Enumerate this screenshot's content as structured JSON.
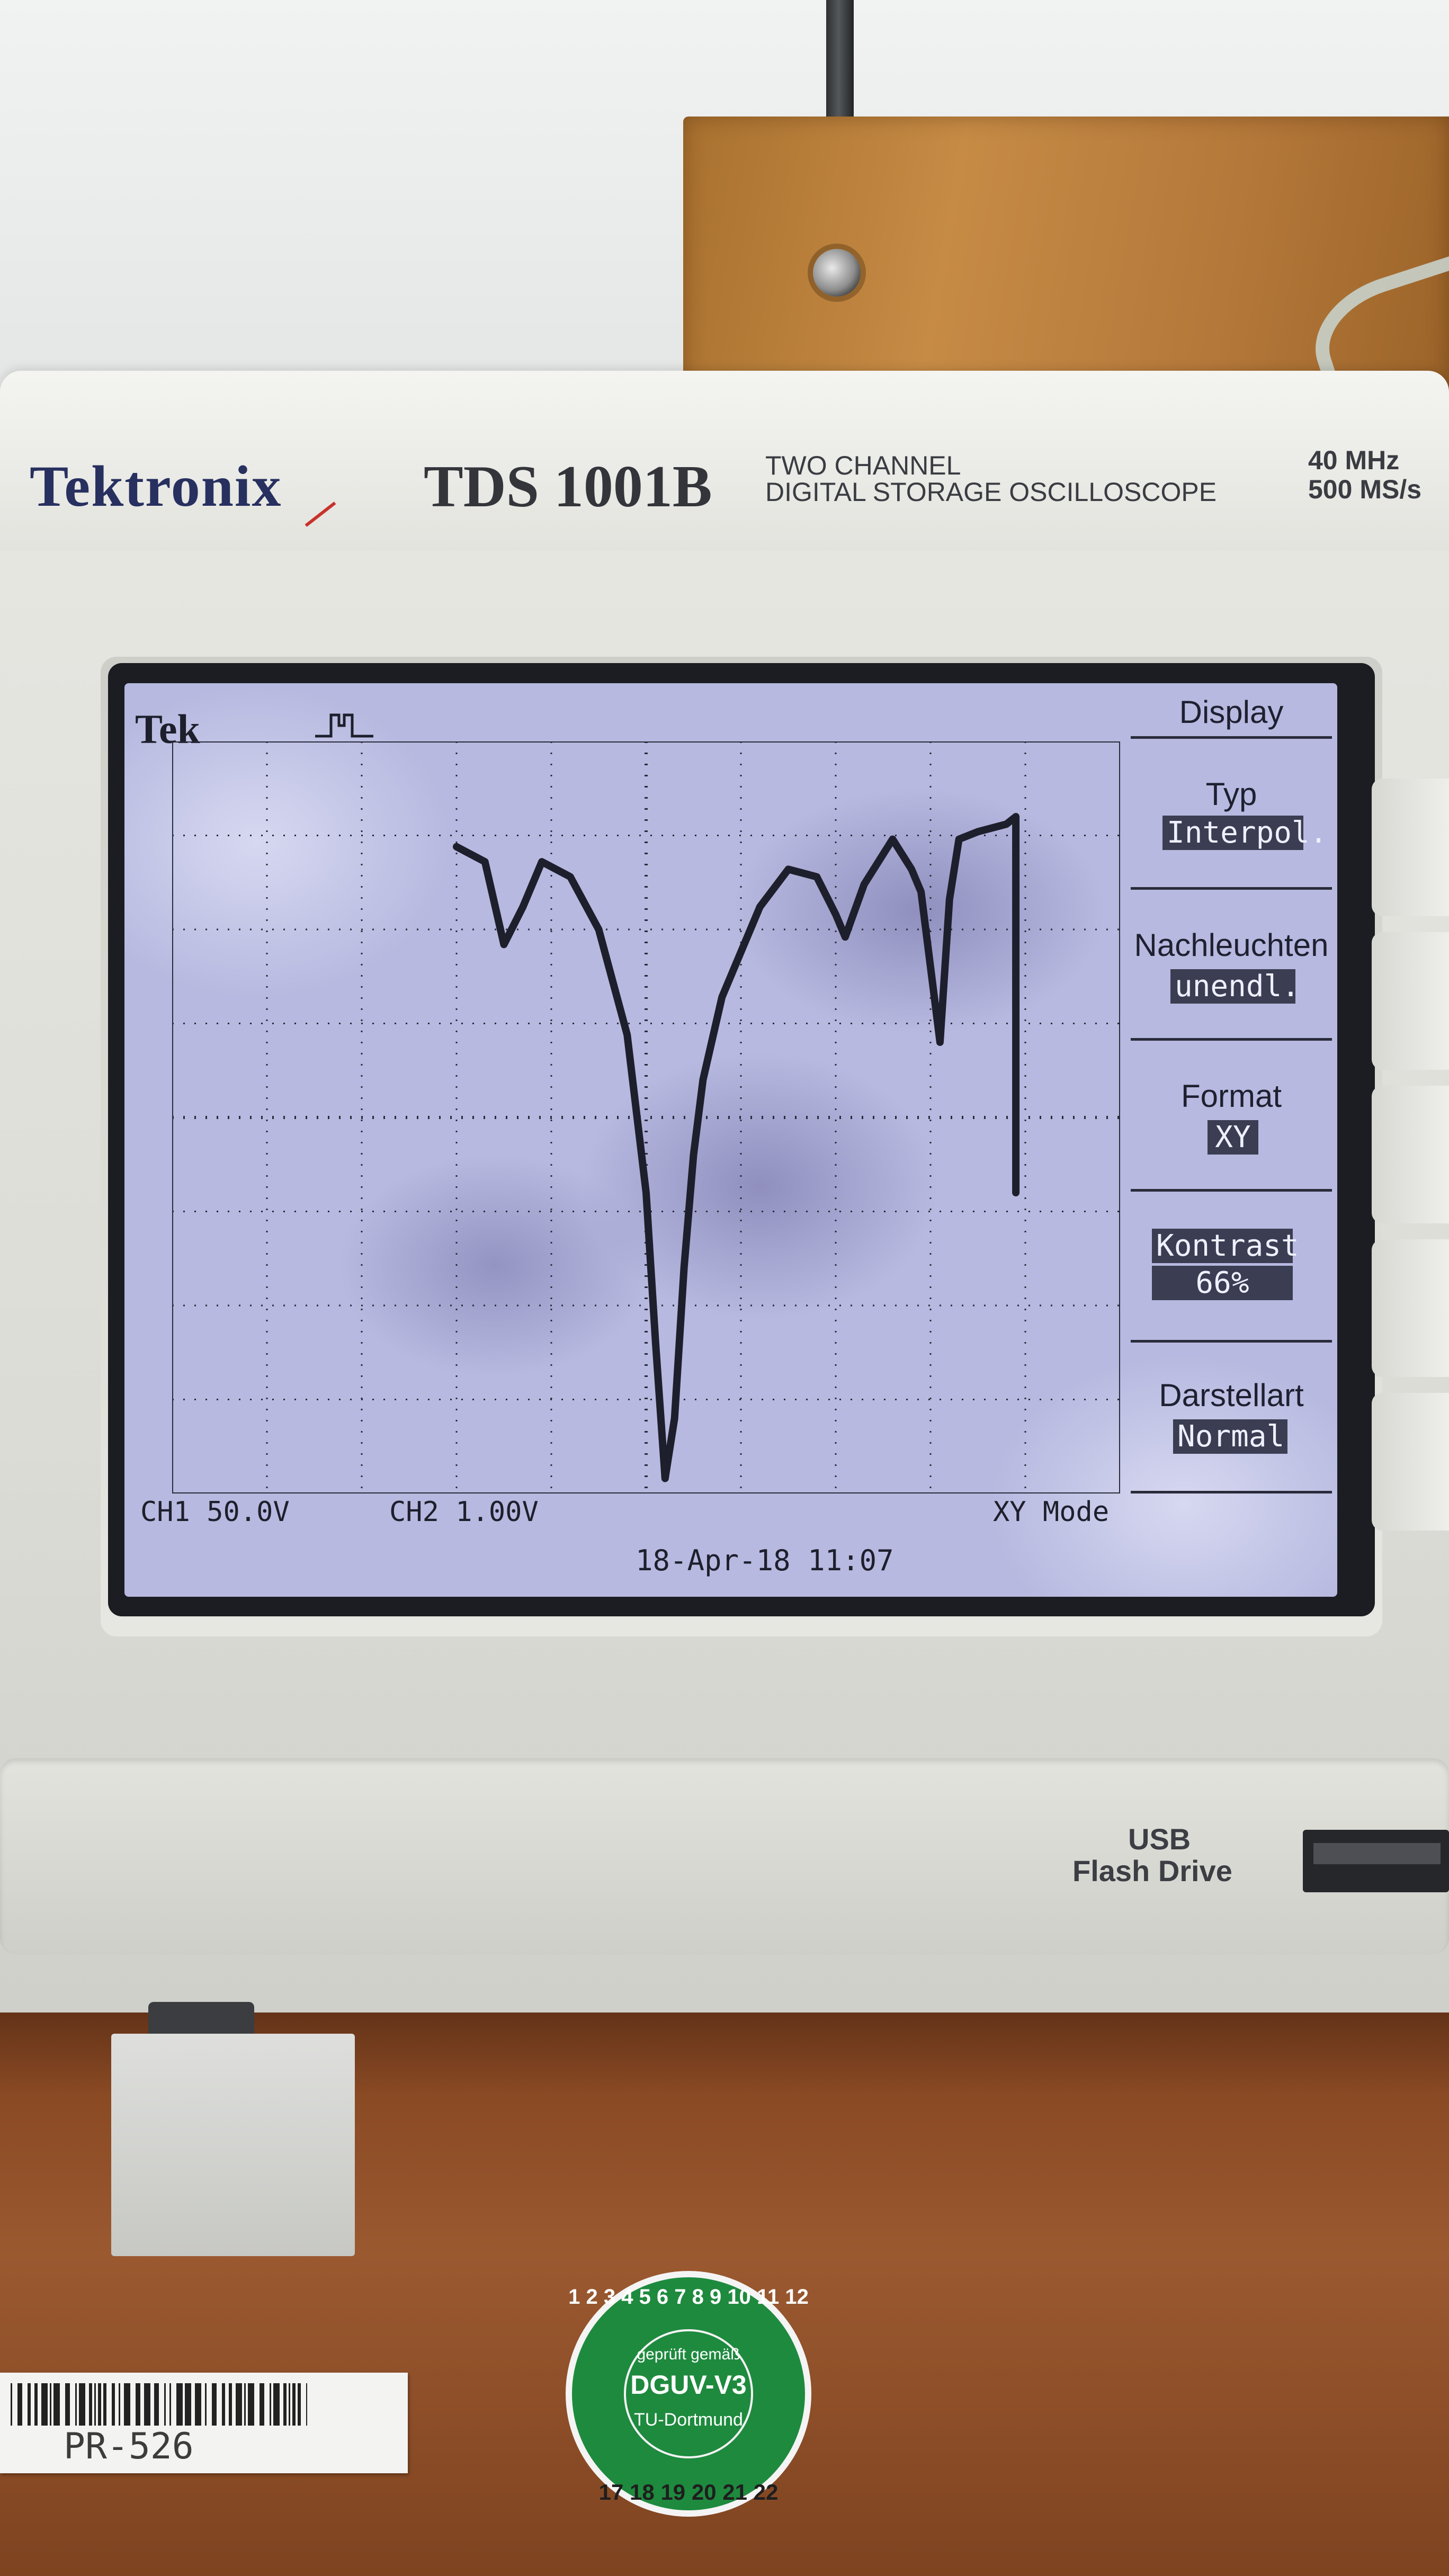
{
  "device": {
    "brand": "Tektronix",
    "model": "TDS 1001B",
    "description_line1": "TWO CHANNEL",
    "description_line2": "DIGITAL STORAGE OSCILLOSCOPE",
    "spec_bandwidth": "40 MHz",
    "spec_sample_rate": "500 MS/s"
  },
  "screen": {
    "logo": "Tek",
    "ch1": "CH1  50.0V",
    "ch2": "CH2  1.00V",
    "mode": "XY Mode",
    "datetime": "18-Apr-18 11:07"
  },
  "menu": {
    "title": "Display",
    "items": [
      {
        "label": "Typ",
        "value": "Interpol."
      },
      {
        "label": "Nachleuchten",
        "value": "unendl."
      },
      {
        "label": "Format",
        "value": "XY"
      },
      {
        "label": "Kontrast",
        "value": "66%"
      },
      {
        "label": "Darstellart",
        "value": "Normal"
      }
    ]
  },
  "usb": {
    "line1": "USB",
    "line2": "Flash Drive"
  },
  "stickers": {
    "inventory": "PR-526",
    "seal_line1": "geprüft gemäß",
    "seal_line2": "DGUV-V3",
    "seal_line3": "TU-Dortmund",
    "seal_numbers": "1 2 3 4 5 6 7 8 9 10 11 12",
    "seal_years": "17 18 19 20 21 22"
  },
  "colors": {
    "screen_bg": "#b7b9e0",
    "trace": "#1e1f2c",
    "brand": "#27305f"
  }
}
